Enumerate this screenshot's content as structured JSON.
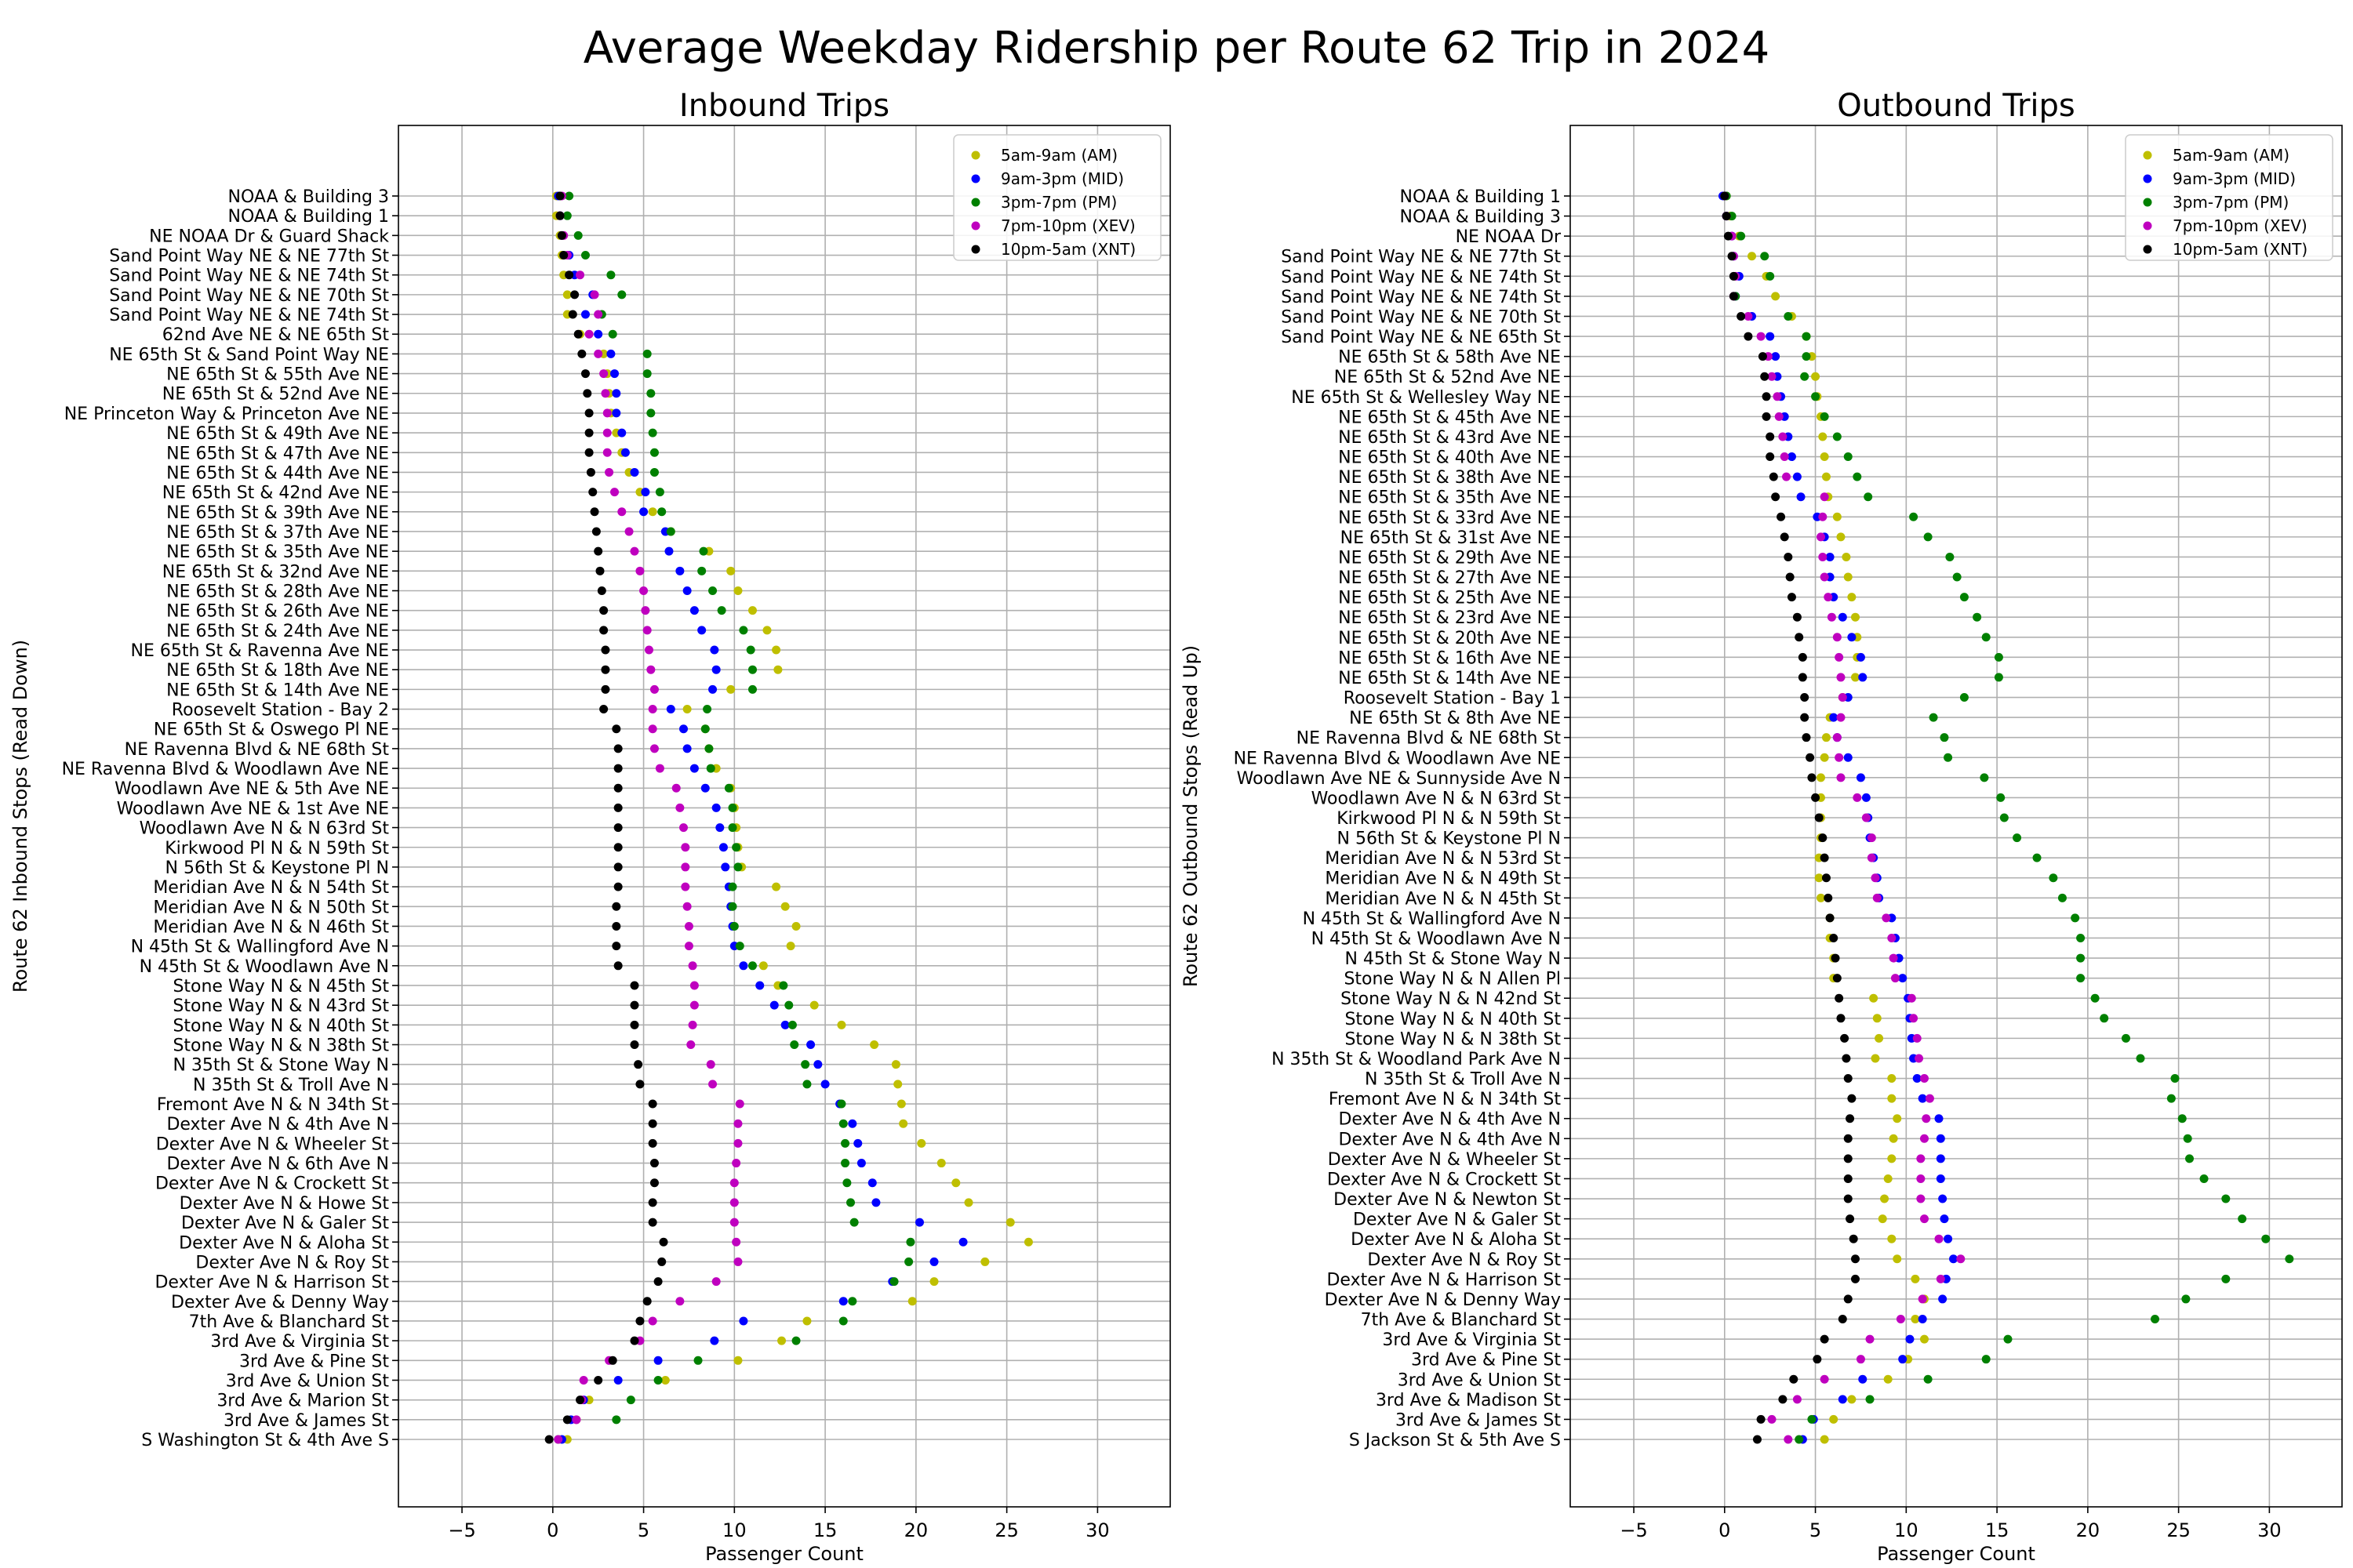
{
  "figure_title": "Average Weekday Ridership per Route 62 Trip in 2024",
  "legend_colors": {
    "AM": "#bfbf00",
    "MID": "#0000ff",
    "PM": "#008000",
    "XEV": "#bf00bf",
    "XNT": "#000000"
  },
  "chart_data": [
    {
      "type": "scatter",
      "title": "Inbound Trips",
      "xlabel": "Passenger Count",
      "ylabel": "Route 62 Inbound Stops (Read Down)",
      "xlim": [
        -8.5,
        34
      ],
      "xticks": [
        -5,
        0,
        5,
        10,
        15,
        20,
        25,
        30
      ],
      "grid": true,
      "legend_position": "top-right",
      "series_names": [
        "5am-9am (AM)",
        "9am-3pm (MID)",
        "3pm-7pm (PM)",
        "7pm-10pm (XEV)",
        "10pm-5am (XNT)"
      ],
      "categories": [
        "NOAA & Building 3",
        "NOAA & Building 1",
        "NE NOAA Dr & Guard Shack",
        "Sand Point Way NE & NE 77th St",
        "Sand Point Way NE & NE 74th St",
        "Sand Point Way NE & NE 70th St",
        "Sand Point Way NE & NE 74th St",
        "62nd Ave NE & NE 65th St",
        "NE 65th St & Sand Point Way NE",
        "NE 65th St & 55th Ave NE",
        "NE 65th St & 52nd Ave NE",
        "NE Princeton Way & Princeton Ave NE",
        "NE 65th St & 49th Ave NE",
        "NE 65th St & 47th Ave NE",
        "NE 65th St & 44th Ave NE",
        "NE 65th St & 42nd Ave NE",
        "NE 65th St & 39th Ave NE",
        "NE 65th St & 37th Ave NE",
        "NE 65th St & 35th Ave NE",
        "NE 65th St & 32nd Ave NE",
        "NE 65th St & 28th Ave NE",
        "NE 65th St & 26th Ave NE",
        "NE 65th St & 24th Ave NE",
        "NE 65th St & Ravenna Ave NE",
        "NE 65th St & 18th Ave NE",
        "NE 65th St & 14th Ave NE",
        "Roosevelt Station - Bay 2",
        "NE 65th St & Oswego Pl NE",
        "NE Ravenna Blvd & NE 68th St",
        "NE Ravenna Blvd & Woodlawn Ave NE",
        "Woodlawn Ave NE & 5th Ave NE",
        "Woodlawn Ave NE & 1st Ave NE",
        "Woodlawn Ave N & N 63rd St",
        "Kirkwood Pl N & N 59th St",
        "N 56th St & Keystone Pl N",
        "Meridian Ave N & N 54th St",
        "Meridian Ave N & N 50th St",
        "Meridian Ave N & N 46th St",
        "N 45th St & Wallingford Ave N",
        "N 45th St & Woodlawn Ave N",
        "Stone Way N & N 45th St",
        "Stone Way N & N 43rd St",
        "Stone Way N & N 40th St",
        "Stone Way N & N 38th St",
        "N 35th St & Stone Way N",
        "N 35th St & Troll Ave N",
        "Fremont Ave N & N 34th St",
        "Dexter Ave N & 4th Ave N",
        "Dexter Ave N & Wheeler St",
        "Dexter Ave N & 6th Ave N",
        "Dexter Ave N & Crockett St",
        "Dexter Ave N & Howe St",
        "Dexter Ave N & Galer St",
        "Dexter Ave N & Aloha St",
        "Dexter Ave N & Roy St",
        "Dexter Ave N & Harrison St",
        "Dexter Ave & Denny Way",
        "7th Ave & Blanchard St",
        "3rd Ave & Virginia St",
        "3rd Ave & Pine St",
        "3rd Ave & Union St",
        "3rd Ave & Marion St",
        "3rd Ave & James St",
        "S Washington St & 4th Ave S"
      ],
      "series": [
        {
          "key": "AM",
          "name": "5am-9am (AM)",
          "values": [
            0.2,
            0.2,
            0.4,
            0.5,
            0.6,
            0.8,
            0.8,
            1.5,
            2.8,
            3.0,
            3.1,
            3.2,
            3.5,
            3.8,
            4.2,
            4.8,
            5.5,
            6.5,
            8.6,
            9.8,
            10.2,
            11.0,
            11.8,
            12.3,
            12.4,
            9.8,
            7.4,
            8.4,
            8.6,
            9.0,
            9.8,
            10.0,
            10.1,
            10.2,
            10.4,
            12.3,
            12.8,
            13.4,
            13.1,
            11.6,
            12.4,
            14.4,
            15.9,
            17.7,
            18.9,
            19.0,
            19.2,
            19.3,
            20.3,
            21.4,
            22.2,
            22.9,
            25.2,
            26.2,
            23.8,
            21.0,
            19.8,
            14.0,
            12.6,
            10.2,
            6.2,
            2.0,
            1.3,
            0.8
          ]
        },
        {
          "key": "MID",
          "name": "9am-3pm (MID)",
          "values": [
            0.3,
            0.4,
            0.5,
            0.9,
            1.2,
            2.2,
            1.8,
            2.5,
            3.2,
            3.4,
            3.5,
            3.5,
            3.8,
            4.0,
            4.5,
            5.1,
            5.0,
            6.2,
            6.4,
            7.0,
            7.4,
            7.8,
            8.2,
            8.9,
            9.0,
            8.8,
            6.5,
            7.2,
            7.4,
            7.8,
            8.4,
            9.0,
            9.2,
            9.4,
            9.5,
            9.7,
            9.8,
            9.9,
            10.0,
            10.5,
            11.4,
            12.2,
            12.8,
            14.2,
            14.6,
            15.0,
            15.8,
            16.5,
            16.8,
            17.0,
            17.6,
            17.8,
            20.2,
            22.6,
            21.0,
            18.7,
            16.0,
            10.5,
            8.9,
            5.8,
            3.6,
            1.7,
            1.0,
            0.5
          ]
        },
        {
          "key": "PM",
          "name": "3pm-7pm (PM)",
          "values": [
            0.9,
            0.8,
            1.4,
            1.8,
            3.2,
            3.8,
            2.7,
            3.3,
            5.2,
            5.2,
            5.4,
            5.4,
            5.5,
            5.6,
            5.6,
            5.9,
            6.0,
            6.5,
            8.3,
            8.2,
            8.8,
            9.3,
            10.5,
            10.9,
            11.0,
            11.0,
            8.5,
            8.4,
            8.6,
            8.7,
            9.7,
            9.9,
            9.9,
            10.1,
            10.2,
            9.9,
            9.9,
            10.0,
            10.3,
            11.0,
            12.7,
            13.0,
            13.2,
            13.3,
            13.9,
            14.0,
            15.9,
            16.0,
            16.1,
            16.1,
            16.2,
            16.4,
            16.6,
            19.7,
            19.6,
            18.8,
            16.5,
            16.0,
            13.4,
            8.0,
            5.8,
            4.3,
            3.5,
            0.3
          ]
        },
        {
          "key": "XEV",
          "name": "7pm-10pm (XEV)",
          "values": [
            0.5,
            0.4,
            0.6,
            0.8,
            1.5,
            2.3,
            2.5,
            2.0,
            2.5,
            2.8,
            2.9,
            3.0,
            3.0,
            3.0,
            3.1,
            3.4,
            3.8,
            4.2,
            4.5,
            4.8,
            5.0,
            5.1,
            5.2,
            5.3,
            5.4,
            5.6,
            5.5,
            5.5,
            5.6,
            5.9,
            6.8,
            7.0,
            7.2,
            7.3,
            7.3,
            7.3,
            7.4,
            7.5,
            7.5,
            7.7,
            7.8,
            7.8,
            7.7,
            7.6,
            8.7,
            8.8,
            10.3,
            10.2,
            10.2,
            10.1,
            10.0,
            10.0,
            10.0,
            10.1,
            10.2,
            9.0,
            7.0,
            5.5,
            4.8,
            3.1,
            1.7,
            1.6,
            1.3,
            0.3
          ]
        },
        {
          "key": "XNT",
          "name": "10pm-5am (XNT)",
          "values": [
            0.4,
            0.4,
            0.5,
            0.6,
            0.9,
            1.2,
            1.1,
            1.4,
            1.6,
            1.8,
            1.9,
            2.0,
            2.0,
            2.0,
            2.1,
            2.2,
            2.3,
            2.4,
            2.5,
            2.6,
            2.7,
            2.8,
            2.8,
            2.9,
            2.9,
            2.9,
            2.8,
            3.5,
            3.6,
            3.6,
            3.6,
            3.6,
            3.6,
            3.6,
            3.6,
            3.6,
            3.5,
            3.5,
            3.5,
            3.6,
            4.5,
            4.5,
            4.5,
            4.5,
            4.7,
            4.8,
            5.5,
            5.5,
            5.5,
            5.6,
            5.6,
            5.5,
            5.5,
            6.1,
            6.0,
            5.8,
            5.2,
            4.8,
            4.5,
            3.3,
            2.5,
            1.5,
            0.8,
            -0.2
          ]
        }
      ]
    },
    {
      "type": "scatter",
      "title": "Outbound Trips",
      "xlabel": "Passenger Count",
      "ylabel": "Route 62 Outbound Stops (Read Up)",
      "xlim": [
        -8.5,
        34
      ],
      "xticks": [
        -5,
        0,
        5,
        10,
        15,
        20,
        25,
        30
      ],
      "grid": true,
      "legend_position": "top-right",
      "series_names": [
        "5am-9am (AM)",
        "9am-3pm (MID)",
        "3pm-7pm (PM)",
        "7pm-10pm (XEV)",
        "10pm-5am (XNT)"
      ],
      "categories": [
        "NOAA & Building 1",
        "NOAA & Building 3",
        "NE NOAA Dr",
        "Sand Point Way NE & NE 77th St",
        "Sand Point Way NE & NE 74th St",
        "Sand Point Way NE & NE 74th St",
        "Sand Point Way NE & NE 70th St",
        "Sand Point Way NE & NE 65th St",
        "NE 65th St & 58th Ave NE",
        "NE 65th St & 52nd Ave NE",
        "NE 65th St & Wellesley Way NE",
        "NE 65th St & 45th Ave NE",
        "NE 65th St & 43rd Ave NE",
        "NE 65th St & 40th Ave NE",
        "NE 65th St & 38th Ave NE",
        "NE 65th St & 35th Ave NE",
        "NE 65th St & 33rd Ave NE",
        "NE 65th St & 31st Ave NE",
        "NE 65th St & 29th Ave NE",
        "NE 65th St & 27th Ave NE",
        "NE 65th St & 25th Ave NE",
        "NE 65th St & 23rd Ave NE",
        "NE 65th St & 20th Ave NE",
        "NE 65th St & 16th Ave NE",
        "NE 65th St & 14th Ave NE",
        "Roosevelt Station - Bay 1",
        "NE 65th St & 8th Ave NE",
        "NE Ravenna Blvd & NE 68th St",
        "NE Ravenna Blvd & Woodlawn Ave NE",
        "Woodlawn Ave NE & Sunnyside Ave N",
        "Woodlawn Ave N & N 63rd St",
        "Kirkwood Pl N & N 59th St",
        "N 56th St & Keystone Pl N",
        "Meridian Ave N & N 53rd St",
        "Meridian Ave N & N 49th St",
        "Meridian Ave N & N 45th St",
        "N 45th St & Wallingford Ave N",
        "N 45th St & Woodlawn Ave N",
        "N 45th St & Stone Way N",
        "Stone Way N & N Allen Pl",
        "Stone Way N & N 42nd St",
        "Stone Way N & N 40th St",
        "Stone Way N & N 38th St",
        "N 35th St & Woodland Park Ave N",
        "N 35th St & Troll Ave N",
        "Fremont Ave N & N 34th St",
        "Dexter Ave N & 4th Ave N",
        "Dexter Ave N & 4th Ave N",
        "Dexter Ave N & Wheeler St",
        "Dexter Ave N & Crockett St",
        "Dexter Ave N & Newton St",
        "Dexter Ave N & Galer St",
        "Dexter Ave N & Aloha St",
        "Dexter Ave N & Roy St",
        "Dexter Ave N & Harrison St",
        "Dexter Ave N & Denny Way",
        "7th Ave & Blanchard St",
        "3rd Ave & Virginia St",
        "3rd Ave & Pine St",
        "3rd Ave & Union St",
        "3rd Ave & Madison St",
        "3rd Ave & James St",
        "S Jackson St & 5th Ave S"
      ],
      "series": [
        {
          "key": "AM",
          "name": "5am-9am (AM)",
          "values": [
            0.1,
            0.3,
            0.8,
            1.5,
            2.3,
            2.8,
            3.7,
            4.5,
            4.8,
            5.0,
            5.1,
            5.3,
            5.4,
            5.5,
            5.6,
            5.7,
            6.2,
            6.4,
            6.7,
            6.8,
            7.0,
            7.2,
            7.3,
            7.3,
            7.2,
            6.5,
            5.8,
            5.6,
            5.5,
            5.3,
            5.3,
            5.3,
            5.3,
            5.2,
            5.2,
            5.3,
            5.8,
            5.8,
            6.0,
            6.0,
            8.2,
            8.4,
            8.5,
            8.3,
            9.2,
            9.2,
            9.5,
            9.3,
            9.2,
            9.0,
            8.8,
            8.7,
            9.2,
            9.5,
            10.5,
            11.0,
            10.5,
            11.0,
            10.1,
            9.0,
            7.0,
            6.0,
            5.5
          ]
        },
        {
          "key": "MID",
          "name": "9am-3pm (MID)",
          "values": [
            -0.1,
            0.1,
            0.4,
            0.5,
            0.8,
            0.6,
            1.5,
            2.5,
            2.8,
            2.9,
            3.1,
            3.3,
            3.5,
            3.7,
            4.0,
            4.2,
            5.1,
            5.5,
            5.8,
            5.8,
            6.0,
            6.5,
            7.0,
            7.5,
            7.6,
            6.8,
            6.0,
            6.2,
            6.8,
            7.5,
            7.8,
            7.9,
            8.0,
            8.2,
            8.4,
            8.5,
            9.2,
            9.4,
            9.6,
            9.8,
            10.1,
            10.2,
            10.3,
            10.4,
            10.6,
            10.9,
            11.8,
            11.9,
            11.9,
            11.9,
            12.0,
            12.1,
            12.3,
            12.6,
            12.2,
            12.0,
            10.9,
            10.2,
            9.8,
            7.6,
            6.5,
            4.9,
            4.3
          ]
        },
        {
          "key": "PM",
          "name": "3pm-7pm (PM)",
          "values": [
            0.1,
            0.4,
            0.9,
            2.2,
            2.5,
            0.6,
            3.5,
            4.5,
            4.5,
            4.4,
            5.0,
            5.5,
            6.2,
            6.8,
            7.3,
            7.9,
            10.4,
            11.2,
            12.4,
            12.8,
            13.2,
            13.9,
            14.4,
            15.1,
            15.1,
            13.2,
            11.5,
            12.1,
            12.3,
            14.3,
            15.2,
            15.4,
            16.1,
            17.2,
            18.1,
            18.6,
            19.3,
            19.6,
            19.6,
            19.6,
            20.4,
            20.9,
            22.1,
            22.9,
            24.8,
            24.6,
            25.2,
            25.5,
            25.6,
            26.4,
            27.6,
            28.5,
            29.8,
            31.1,
            27.6,
            25.4,
            23.7,
            15.6,
            14.4,
            11.2,
            8.0,
            4.8,
            4.1
          ]
        },
        {
          "key": "XEV",
          "name": "7pm-10pm (XEV)",
          "values": [
            0.0,
            0.1,
            0.4,
            0.5,
            0.6,
            0.5,
            1.3,
            2.0,
            2.4,
            2.6,
            2.9,
            3.0,
            3.2,
            3.3,
            3.4,
            5.5,
            5.4,
            5.3,
            5.4,
            5.5,
            5.7,
            5.9,
            6.2,
            6.3,
            6.4,
            6.5,
            6.4,
            6.2,
            6.3,
            6.4,
            7.3,
            7.8,
            8.1,
            8.1,
            8.3,
            8.4,
            8.9,
            9.2,
            9.3,
            9.4,
            10.3,
            10.4,
            10.6,
            10.7,
            11.0,
            11.3,
            11.1,
            11.0,
            10.8,
            10.8,
            10.8,
            11.0,
            11.8,
            13.0,
            11.9,
            10.9,
            9.7,
            8.0,
            7.5,
            5.5,
            4.0,
            2.6,
            3.5
          ]
        },
        {
          "key": "XNT",
          "name": "10pm-5am (XNT)",
          "values": [
            0.0,
            0.1,
            0.2,
            0.4,
            0.5,
            0.5,
            0.9,
            1.3,
            2.1,
            2.2,
            2.3,
            2.3,
            2.5,
            2.5,
            2.7,
            2.8,
            3.1,
            3.3,
            3.5,
            3.6,
            3.7,
            4.0,
            4.1,
            4.3,
            4.3,
            4.4,
            4.4,
            4.5,
            4.7,
            4.8,
            5.0,
            5.2,
            5.4,
            5.5,
            5.6,
            5.7,
            5.8,
            6.0,
            6.1,
            6.2,
            6.3,
            6.4,
            6.6,
            6.7,
            6.8,
            7.0,
            6.9,
            6.8,
            6.8,
            6.8,
            6.8,
            6.9,
            7.1,
            7.2,
            7.2,
            6.8,
            6.5,
            5.5,
            5.1,
            3.8,
            3.2,
            2.0,
            1.8
          ]
        }
      ]
    }
  ]
}
